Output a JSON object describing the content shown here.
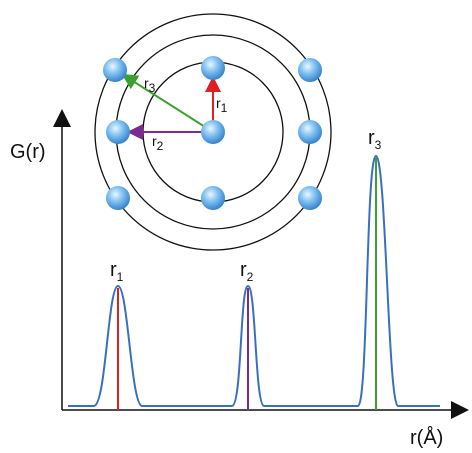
{
  "axes": {
    "y_label": "G(r)",
    "x_label": "r(Å)"
  },
  "peaks": [
    {
      "symbol": "r",
      "index": "1"
    },
    {
      "symbol": "r",
      "index": "2"
    },
    {
      "symbol": "r",
      "index": "3"
    }
  ],
  "vectors": [
    {
      "symbol": "r",
      "index": "1"
    },
    {
      "symbol": "r",
      "index": "2"
    },
    {
      "symbol": "r",
      "index": "3"
    }
  ]
}
